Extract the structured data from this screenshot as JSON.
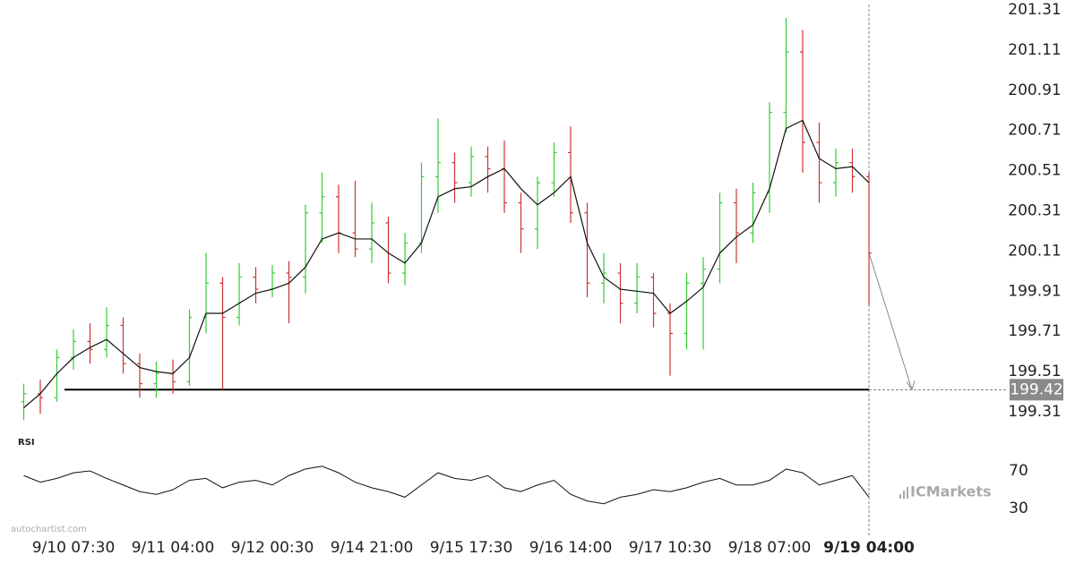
{
  "chart_data": {
    "type": "ohlc",
    "categories": [
      null,
      null,
      null,
      "9/10 07:30",
      null,
      null,
      null,
      null,
      null,
      "9/11 04:00",
      null,
      null,
      null,
      null,
      null,
      "9/12 00:30",
      null,
      null,
      null,
      null,
      null,
      "9/14 21:00",
      null,
      null,
      null,
      null,
      null,
      "9/15 17:30",
      null,
      null,
      null,
      null,
      null,
      "9/16 14:00",
      null,
      null,
      null,
      null,
      null,
      "9/17 10:30",
      null,
      null,
      null,
      null,
      null,
      "9/18 07:00",
      null,
      null,
      null,
      null,
      null,
      "9/19 04:00"
    ],
    "open": [
      199.36,
      199.4,
      199.38,
      199.58,
      199.66,
      199.62,
      199.74,
      199.55,
      199.45,
      199.5,
      199.46,
      199.78,
      199.95,
      199.78,
      199.98,
      199.92,
      200.0,
      199.98,
      200.3,
      200.38,
      200.2,
      200.12,
      200.25,
      200.0,
      200.15,
      200.48,
      200.55,
      200.45,
      200.58,
      200.52,
      200.35,
      200.22,
      200.45,
      200.6,
      200.3,
      199.95,
      200.0,
      199.85,
      199.98,
      199.8,
      199.7,
      199.95,
      200.02,
      200.35,
      200.2,
      200.4,
      200.8,
      201.1,
      200.65,
      200.45,
      200.55,
      200.48
    ],
    "high": [
      199.45,
      199.47,
      199.62,
      199.72,
      199.75,
      199.83,
      199.78,
      199.6,
      199.56,
      199.57,
      199.82,
      200.1,
      199.98,
      200.05,
      200.03,
      200.04,
      200.06,
      200.34,
      200.5,
      200.44,
      200.46,
      200.35,
      200.28,
      200.2,
      200.55,
      200.77,
      200.6,
      200.63,
      200.63,
      200.66,
      200.4,
      200.48,
      200.65,
      200.73,
      200.35,
      200.1,
      200.05,
      200.05,
      200.0,
      199.85,
      200.0,
      200.08,
      200.4,
      200.42,
      200.45,
      200.85,
      201.27,
      201.21,
      200.75,
      200.62,
      200.62,
      200.5
    ],
    "low": [
      199.27,
      199.3,
      199.36,
      199.52,
      199.55,
      199.58,
      199.5,
      199.38,
      199.38,
      199.4,
      199.44,
      199.7,
      199.42,
      199.74,
      199.85,
      199.88,
      199.75,
      199.9,
      200.15,
      200.1,
      200.08,
      200.05,
      199.95,
      199.94,
      200.1,
      200.3,
      200.35,
      200.38,
      200.4,
      200.3,
      200.1,
      200.12,
      200.38,
      200.25,
      199.88,
      199.85,
      199.75,
      199.8,
      199.73,
      199.49,
      199.62,
      199.62,
      199.95,
      200.05,
      200.15,
      200.3,
      200.7,
      200.5,
      200.35,
      200.38,
      200.4,
      199.84
    ],
    "close": [
      199.4,
      199.38,
      199.58,
      199.66,
      199.62,
      199.74,
      199.55,
      199.45,
      199.5,
      199.46,
      199.78,
      199.95,
      199.78,
      199.98,
      199.92,
      200.0,
      199.98,
      200.3,
      200.38,
      200.2,
      200.12,
      200.25,
      200.0,
      200.15,
      200.48,
      200.55,
      200.45,
      200.58,
      200.52,
      200.35,
      200.22,
      200.45,
      200.6,
      200.3,
      199.95,
      200.0,
      199.85,
      199.98,
      199.8,
      199.7,
      199.95,
      200.02,
      200.35,
      200.2,
      200.4,
      200.8,
      201.1,
      200.65,
      200.45,
      200.55,
      200.48,
      200.1
    ],
    "up_color": "#33cc33",
    "down_color": "#cc3333",
    "moving_average": [
      199.33,
      199.4,
      199.5,
      199.58,
      199.63,
      199.67,
      199.6,
      199.53,
      199.51,
      199.5,
      199.58,
      199.8,
      199.8,
      199.85,
      199.9,
      199.92,
      199.95,
      200.03,
      200.17,
      200.2,
      200.17,
      200.17,
      200.1,
      200.05,
      200.15,
      200.38,
      200.42,
      200.43,
      200.48,
      200.52,
      200.42,
      200.34,
      200.4,
      200.48,
      200.15,
      199.98,
      199.92,
      199.91,
      199.9,
      199.8,
      199.86,
      199.93,
      200.1,
      200.18,
      200.24,
      200.42,
      200.72,
      200.76,
      200.57,
      200.52,
      200.53,
      200.45
    ],
    "ylim": [
      199.31,
      201.31
    ],
    "yticks": [
      199.31,
      199.51,
      199.71,
      199.91,
      200.11,
      200.31,
      200.51,
      200.71,
      200.91,
      201.11,
      201.31
    ],
    "level": 199.42,
    "rsi_title": "RSI",
    "rsi": [
      65,
      58,
      62,
      68,
      70,
      62,
      55,
      48,
      45,
      50,
      60,
      62,
      52,
      58,
      60,
      55,
      65,
      72,
      75,
      68,
      58,
      52,
      48,
      42,
      55,
      68,
      62,
      60,
      65,
      52,
      48,
      55,
      60,
      45,
      38,
      35,
      42,
      45,
      50,
      48,
      52,
      58,
      62,
      55,
      55,
      60,
      72,
      68,
      55,
      60,
      65,
      42
    ],
    "rsi_ylim": [
      30,
      70
    ],
    "rsi_yticks": [
      70,
      30
    ],
    "watermark": "autochartist.com",
    "logo": "ICMarkets"
  }
}
